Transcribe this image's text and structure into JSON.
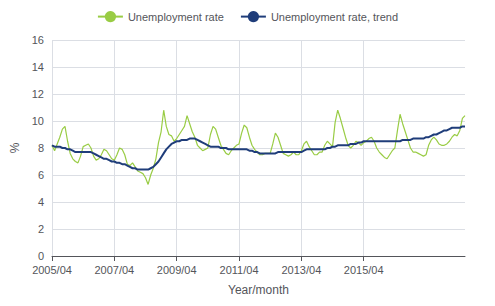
{
  "chart_data": {
    "type": "line",
    "xlabel": "Year/month",
    "ylabel": "%",
    "categories": [
      "2005/04",
      null,
      null,
      null,
      null,
      null,
      null,
      null,
      null,
      null,
      null,
      null,
      null,
      null,
      null,
      null,
      null,
      null,
      null,
      null,
      null,
      null,
      null,
      null,
      "2007/04",
      null,
      null,
      null,
      null,
      null,
      null,
      null,
      null,
      null,
      null,
      null,
      null,
      null,
      null,
      null,
      null,
      null,
      null,
      null,
      null,
      null,
      null,
      null,
      "2009/04",
      null,
      null,
      null,
      null,
      null,
      null,
      null,
      null,
      null,
      null,
      null,
      null,
      null,
      null,
      null,
      null,
      null,
      null,
      null,
      null,
      null,
      null,
      null,
      "2011/04",
      null,
      null,
      null,
      null,
      null,
      null,
      null,
      null,
      null,
      null,
      null,
      null,
      null,
      null,
      null,
      null,
      null,
      null,
      null,
      null,
      null,
      null,
      null,
      "2013/04",
      null,
      null,
      null,
      null,
      null,
      null,
      null,
      null,
      null,
      null,
      null,
      null,
      null,
      null,
      null,
      null,
      null,
      null,
      null,
      null,
      null,
      null,
      null,
      "2015/04",
      null,
      null,
      null,
      null,
      null,
      null,
      null,
      null,
      null,
      null,
      null,
      null,
      null,
      null,
      null,
      null,
      null,
      null,
      null,
      null,
      null,
      null,
      null,
      null,
      null,
      null,
      null,
      null,
      null,
      null,
      null,
      null,
      null,
      null,
      null,
      null,
      null,
      null,
      null
    ],
    "series": [
      {
        "name": "Unemployment rate",
        "color": "#99cc44",
        "values": [
          8.2,
          7.8,
          8.3,
          8.8,
          9.4,
          9.6,
          8.5,
          7.6,
          7.2,
          7.0,
          6.9,
          7.4,
          8.1,
          8.2,
          8.3,
          8.0,
          7.4,
          7.1,
          7.2,
          7.5,
          7.9,
          7.8,
          7.5,
          7.2,
          7.1,
          7.5,
          8.0,
          7.9,
          7.5,
          6.8,
          6.7,
          6.9,
          6.6,
          6.3,
          6.2,
          6.1,
          5.8,
          5.3,
          6.0,
          6.5,
          7.2,
          8.4,
          9.2,
          10.8,
          9.6,
          9.0,
          8.9,
          8.5,
          8.7,
          9.0,
          9.3,
          9.6,
          10.4,
          9.8,
          9.2,
          8.8,
          8.2,
          8.0,
          7.8,
          7.9,
          8.0,
          9.0,
          9.6,
          9.4,
          8.8,
          8.2,
          7.9,
          7.6,
          7.5,
          7.8,
          8.0,
          8.2,
          8.3,
          9.1,
          9.7,
          9.5,
          8.8,
          8.2,
          7.9,
          7.7,
          7.5,
          7.5,
          7.6,
          7.6,
          7.6,
          8.3,
          9.1,
          8.8,
          8.2,
          7.6,
          7.5,
          7.4,
          7.5,
          7.7,
          7.5,
          7.5,
          7.8,
          8.3,
          8.5,
          8.1,
          7.8,
          7.5,
          7.5,
          7.7,
          7.7,
          8.2,
          8.5,
          8.3,
          8.1,
          9.9,
          10.8,
          10.2,
          9.5,
          8.8,
          8.2,
          8.0,
          8.2,
          8.5,
          8.4,
          8.2,
          8.4,
          8.5,
          8.7,
          8.8,
          8.5,
          8.0,
          7.7,
          7.5,
          7.3,
          7.2,
          7.5,
          7.8,
          8.0,
          9.3,
          10.5,
          9.8,
          9.2,
          8.6,
          8.0,
          7.7,
          7.7,
          7.6,
          7.5,
          7.4,
          7.5,
          8.2,
          8.6,
          8.8,
          8.6,
          8.3,
          8.2,
          8.2,
          8.3,
          8.5,
          8.8,
          9.0,
          8.9,
          9.3,
          10.2,
          10.4
        ]
      },
      {
        "name": "Unemployment rate, trend",
        "color": "#1f3d7a",
        "values": [
          8.2,
          8.1,
          8.1,
          8.1,
          8.0,
          8.0,
          7.9,
          7.9,
          7.8,
          7.7,
          7.7,
          7.7,
          7.7,
          7.7,
          7.7,
          7.7,
          7.6,
          7.5,
          7.4,
          7.3,
          7.2,
          7.2,
          7.1,
          7.0,
          7.0,
          6.9,
          6.9,
          6.8,
          6.8,
          6.7,
          6.6,
          6.5,
          6.5,
          6.4,
          6.4,
          6.4,
          6.4,
          6.4,
          6.5,
          6.6,
          6.8,
          7.0,
          7.3,
          7.6,
          7.9,
          8.1,
          8.3,
          8.4,
          8.5,
          8.5,
          8.6,
          8.6,
          8.6,
          8.7,
          8.7,
          8.7,
          8.6,
          8.5,
          8.4,
          8.3,
          8.2,
          8.1,
          8.1,
          8.1,
          8.1,
          8.0,
          8.0,
          8.0,
          7.9,
          7.9,
          7.9,
          7.9,
          7.9,
          7.9,
          7.9,
          7.9,
          7.8,
          7.8,
          7.7,
          7.7,
          7.6,
          7.6,
          7.6,
          7.6,
          7.6,
          7.6,
          7.6,
          7.7,
          7.7,
          7.7,
          7.7,
          7.7,
          7.7,
          7.7,
          7.7,
          7.7,
          7.7,
          7.8,
          7.9,
          7.9,
          7.9,
          7.9,
          7.9,
          7.9,
          7.9,
          7.9,
          8.0,
          8.0,
          8.1,
          8.1,
          8.2,
          8.2,
          8.2,
          8.2,
          8.2,
          8.3,
          8.3,
          8.3,
          8.4,
          8.4,
          8.5,
          8.5,
          8.5,
          8.5,
          8.5,
          8.5,
          8.5,
          8.5,
          8.5,
          8.5,
          8.5,
          8.5,
          8.5,
          8.5,
          8.5,
          8.6,
          8.6,
          8.6,
          8.6,
          8.7,
          8.7,
          8.7,
          8.7,
          8.7,
          8.8,
          8.8,
          8.9,
          9.0,
          9.0,
          9.1,
          9.2,
          9.3,
          9.3,
          9.4,
          9.5,
          9.5,
          9.5,
          9.5,
          9.6,
          9.6
        ]
      }
    ],
    "ylim": [
      0,
      16
    ],
    "yticks": [
      0,
      2,
      4,
      6,
      8,
      10,
      12,
      14,
      16
    ],
    "grid": true,
    "legend": "top"
  }
}
